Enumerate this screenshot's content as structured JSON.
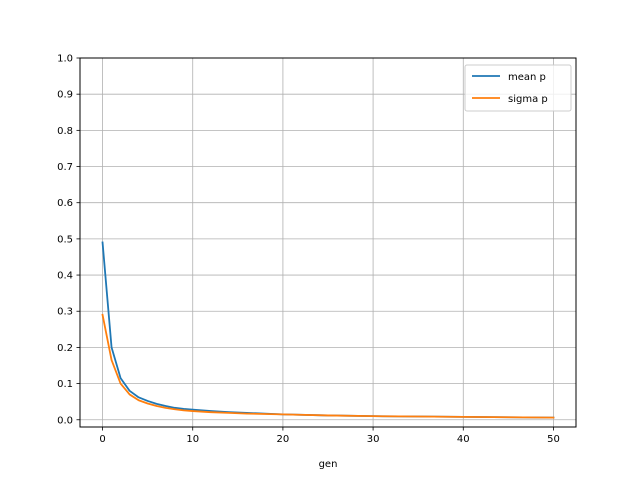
{
  "chart_data": {
    "type": "line",
    "title": "",
    "xlabel": "gen",
    "ylabel": "",
    "xlim": [
      -2.5,
      52.5
    ],
    "ylim": [
      -0.02,
      1.0
    ],
    "xticks": [
      0,
      10,
      20,
      30,
      40,
      50
    ],
    "yticks": [
      0.0,
      0.1,
      0.2,
      0.3,
      0.4,
      0.5,
      0.6,
      0.7,
      0.8,
      0.9,
      1.0
    ],
    "xtick_labels": [
      "0",
      "10",
      "20",
      "30",
      "40",
      "50"
    ],
    "ytick_labels": [
      "0.0",
      "0.1",
      "0.2",
      "0.3",
      "0.4",
      "0.5",
      "0.6",
      "0.7",
      "0.8",
      "0.9",
      "1.0"
    ],
    "grid": true,
    "legend_position": "top-right",
    "x": [
      0,
      1,
      2,
      3,
      4,
      5,
      6,
      7,
      8,
      9,
      10,
      12,
      14,
      16,
      18,
      20,
      25,
      30,
      35,
      40,
      45,
      50
    ],
    "series": [
      {
        "name": "mean p",
        "color": "#1f77b4",
        "values": [
          0.49,
          0.2,
          0.115,
          0.08,
          0.062,
          0.052,
          0.044,
          0.038,
          0.033,
          0.03,
          0.028,
          0.024,
          0.021,
          0.019,
          0.017,
          0.015,
          0.012,
          0.01,
          0.009,
          0.008,
          0.007,
          0.006
        ]
      },
      {
        "name": "sigma p",
        "color": "#ff7f0e",
        "values": [
          0.29,
          0.165,
          0.1,
          0.07,
          0.054,
          0.045,
          0.038,
          0.033,
          0.029,
          0.026,
          0.024,
          0.021,
          0.019,
          0.017,
          0.016,
          0.015,
          0.012,
          0.01,
          0.009,
          0.008,
          0.007,
          0.006
        ]
      }
    ]
  }
}
